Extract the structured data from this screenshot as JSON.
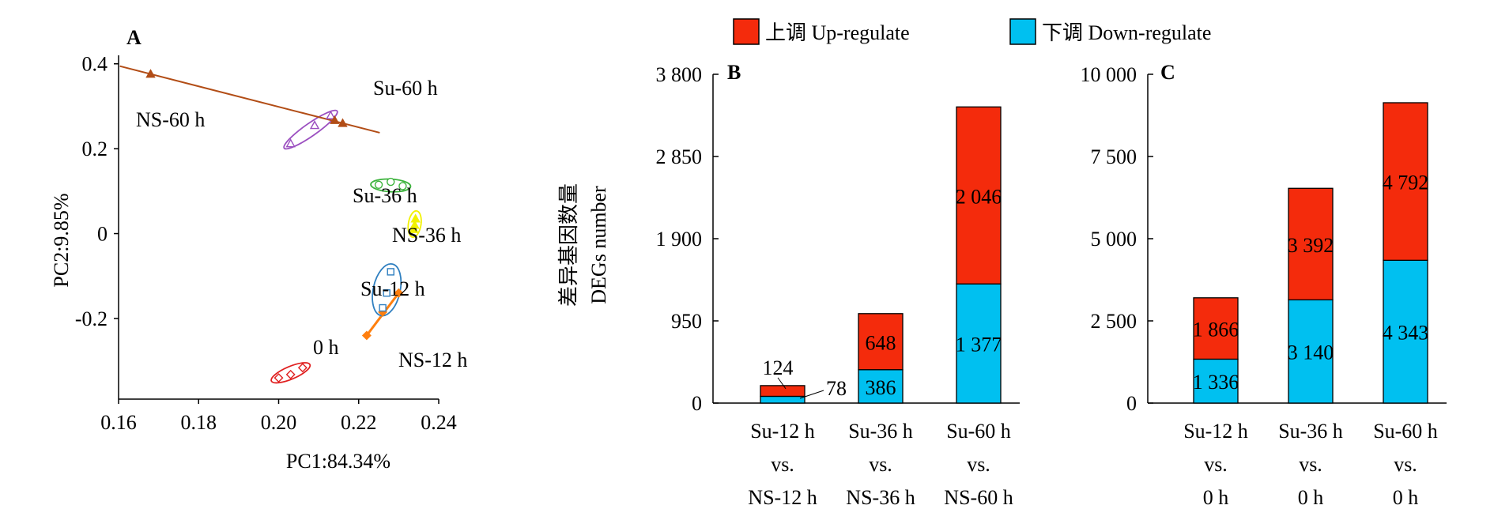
{
  "legend": {
    "up_label": "上调 Up-regulate",
    "down_label": "下调 Down-regulate",
    "up_color": "#f42b0c",
    "down_color": "#00c0f0"
  },
  "shared_ylabel_line1": "差异基因数量",
  "shared_ylabel_line2": "DEGs number",
  "chart_data": [
    {
      "panel": "A",
      "type": "scatter",
      "xlabel": "PC1:84.34%",
      "ylabel": "PC2:9.85%",
      "xlim": [
        0.16,
        0.24
      ],
      "ylim": [
        -0.39,
        0.42
      ],
      "xticks": [
        "0.16",
        "0.18",
        "0.20",
        "0.22",
        "0.24"
      ],
      "yticks": [
        "0.4",
        "0.2",
        "0",
        "-0.2"
      ],
      "grid": false,
      "groups": [
        {
          "name": "0 h",
          "color": "#e02020",
          "marker": "diamond",
          "points": [
            [
              0.2,
              -0.34
            ],
            [
              0.203,
              -0.332
            ],
            [
              0.206,
              -0.316
            ]
          ]
        },
        {
          "name": "NS-12 h",
          "color": "#ff7f0e",
          "marker": "diamond",
          "points": [
            [
              0.222,
              -0.24
            ],
            [
              0.226,
              -0.185
            ],
            [
              0.23,
              -0.14
            ]
          ]
        },
        {
          "name": "Su-12 h",
          "color": "#2f7fc0",
          "marker": "square",
          "points": [
            [
              0.226,
              -0.175
            ],
            [
              0.227,
              -0.14
            ],
            [
              0.228,
              -0.09
            ]
          ]
        },
        {
          "name": "NS-36 h",
          "color": "#f2f200",
          "marker": "triangle",
          "points": [
            [
              0.2338,
              0.01
            ],
            [
              0.234,
              0.02
            ],
            [
              0.2342,
              0.035
            ]
          ]
        },
        {
          "name": "Su-36 h",
          "color": "#3cb33c",
          "marker": "circle",
          "points": [
            [
              0.225,
              0.115
            ],
            [
              0.228,
              0.122
            ],
            [
              0.231,
              0.112
            ]
          ]
        },
        {
          "name": "Su-60 h",
          "color": "#9b4fc0",
          "marker": "triangle",
          "points": [
            [
              0.203,
              0.212
            ],
            [
              0.209,
              0.255
            ],
            [
              0.213,
              0.278
            ]
          ]
        },
        {
          "name": "NS-60 h",
          "color": "#b24d16",
          "marker": "triangle",
          "points": [
            [
              0.168,
              0.376
            ],
            [
              0.214,
              0.267
            ],
            [
              0.216,
              0.26
            ]
          ]
        }
      ]
    },
    {
      "panel": "B",
      "type": "bar",
      "stacked": true,
      "categories": [
        [
          "Su-12 h",
          "vs.",
          "NS-12 h"
        ],
        [
          "Su-36 h",
          "vs.",
          "NS-36 h"
        ],
        [
          "Su-60 h",
          "vs.",
          "NS-60 h"
        ]
      ],
      "ylim": [
        0,
        3800
      ],
      "yticks": [
        "0",
        "950",
        "1 900",
        "2 850",
        "3 800"
      ],
      "series": [
        {
          "name": "下调 Down-regulate",
          "values": [
            78,
            386,
            1377
          ],
          "labels": [
            "78",
            "386",
            "1 377"
          ]
        },
        {
          "name": "上调 Up-regulate",
          "values": [
            124,
            648,
            2046
          ],
          "labels": [
            "124",
            "648",
            "2 046"
          ]
        }
      ]
    },
    {
      "panel": "C",
      "type": "bar",
      "stacked": true,
      "categories": [
        [
          "Su-12 h",
          "vs.",
          "0 h"
        ],
        [
          "Su-36 h",
          "vs.",
          "0 h"
        ],
        [
          "Su-60 h",
          "vs.",
          "0 h"
        ]
      ],
      "ylim": [
        0,
        10000
      ],
      "yticks": [
        "0",
        "2 500",
        "5 000",
        "7 500",
        "10 000"
      ],
      "series": [
        {
          "name": "下调 Down-regulate",
          "values": [
            1336,
            3140,
            4343
          ],
          "labels": [
            "1 336",
            "3 140",
            "4 343"
          ]
        },
        {
          "name": "上调 Up-regulate",
          "values": [
            1866,
            3392,
            4792
          ],
          "labels": [
            "1 866",
            "3 392",
            "4 792"
          ]
        }
      ]
    }
  ]
}
